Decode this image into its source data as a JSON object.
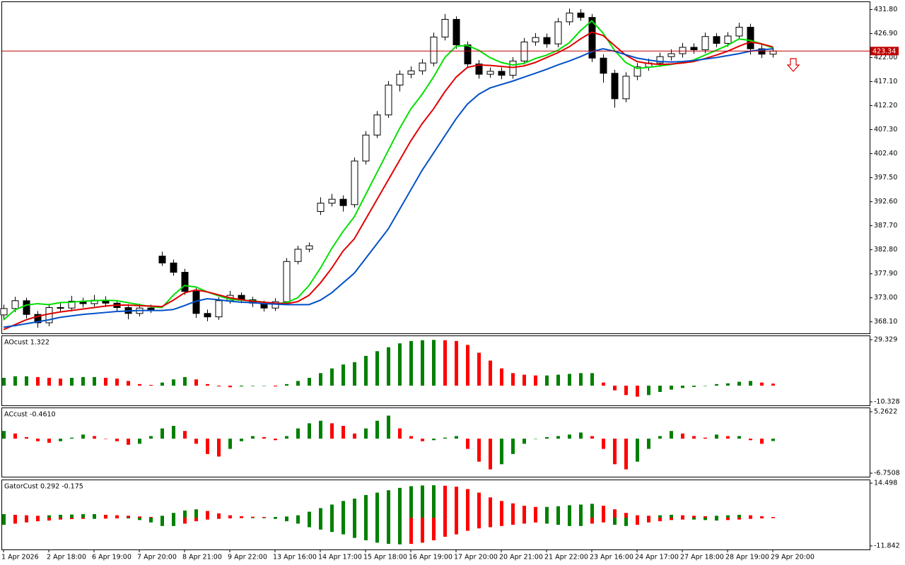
{
  "chart_data": [
    {
      "type": "candlestick",
      "categories": [
        "1 Apr 2026",
        null,
        null,
        null,
        "2 Apr 18:00",
        null,
        null,
        null,
        "6 Apr 19:00",
        null,
        null,
        null,
        "7 Apr 20:00",
        null,
        null,
        null,
        "8 Apr 21:00",
        null,
        null,
        null,
        "9 Apr 22:00",
        null,
        null,
        null,
        "13 Apr 16:00",
        null,
        null,
        null,
        "14 Apr 17:00",
        null,
        null,
        null,
        "15 Apr 18:00",
        null,
        null,
        null,
        "16 Apr 19:00",
        null,
        null,
        null,
        "17 Apr 20:00",
        null,
        null,
        null,
        "20 Apr 21:00",
        null,
        null,
        null,
        "21 Apr 22:00",
        null,
        null,
        null,
        "23 Apr 16:00",
        null,
        null,
        null,
        "24 Apr 17:00",
        null,
        null,
        null,
        "27 Apr 18:00",
        null,
        null,
        null,
        "28 Apr 19:00",
        null,
        null,
        null,
        "29 Apr 20:00"
      ],
      "open": [
        369.5,
        370.8,
        372.4,
        369.6,
        367.9,
        371.0,
        370.9,
        372.3,
        371.8,
        372.5,
        371.9,
        371.0,
        369.8,
        370.9,
        381.5,
        380.1,
        378.2,
        374.3,
        369.8,
        369.1,
        372.4,
        373.5,
        372.6,
        371.9,
        370.9,
        372.2,
        380.4,
        382.9,
        390.6,
        392.3,
        393.1,
        392.0,
        400.9,
        406.2,
        410.3,
        416.4,
        418.6,
        419.3,
        420.9,
        426.2,
        429.8,
        424.6,
        420.7,
        418.6,
        419.2,
        418.4,
        421.3,
        425.2,
        426.1,
        424.8,
        429.3,
        431.1,
        430.2,
        421.9,
        418.8,
        413.6,
        418.2,
        420.1,
        420.9,
        422.2,
        422.8,
        424.1,
        423.6,
        426.3,
        424.9,
        426.4,
        428.2,
        423.8,
        422.7
      ],
      "high": [
        371.6,
        373.2,
        373.0,
        370.3,
        371.8,
        371.9,
        373.4,
        373.0,
        373.6,
        373.3,
        372.5,
        371.7,
        371.8,
        371.6,
        382.4,
        380.8,
        378.9,
        375.0,
        370.6,
        373.1,
        374.4,
        374.1,
        373.2,
        372.4,
        372.9,
        381.1,
        383.6,
        384.3,
        393.5,
        394.2,
        393.9,
        401.6,
        407.0,
        411.1,
        417.2,
        419.4,
        420.2,
        421.7,
        427.1,
        430.9,
        430.4,
        425.3,
        421.5,
        420.0,
        420.0,
        422.1,
        426.0,
        427.0,
        426.9,
        430.1,
        432.0,
        431.9,
        430.9,
        422.7,
        419.5,
        419.0,
        420.9,
        421.8,
        423.0,
        423.7,
        425.0,
        424.9,
        427.1,
        427.0,
        427.2,
        429.1,
        428.9,
        424.6,
        424.1
      ],
      "low": [
        368.4,
        370.1,
        368.8,
        366.9,
        367.2,
        370.0,
        370.2,
        371.0,
        371.2,
        371.1,
        370.1,
        368.6,
        369.2,
        369.9,
        379.5,
        377.5,
        373.6,
        368.9,
        368.2,
        368.5,
        371.8,
        371.9,
        371.1,
        370.2,
        370.3,
        371.6,
        379.8,
        382.3,
        389.9,
        391.6,
        390.6,
        391.4,
        400.2,
        405.6,
        409.7,
        415.1,
        417.8,
        418.5,
        420.2,
        425.5,
        423.8,
        419.9,
        417.7,
        417.9,
        417.6,
        417.7,
        420.6,
        424.4,
        424.0,
        424.1,
        428.6,
        429.5,
        421.1,
        416.9,
        411.8,
        412.9,
        417.4,
        419.3,
        420.1,
        421.4,
        422.0,
        422.8,
        422.9,
        424.1,
        424.2,
        425.7,
        422.6,
        421.9,
        422.0
      ],
      "close": [
        370.8,
        372.4,
        369.6,
        367.9,
        371.0,
        370.9,
        372.3,
        371.8,
        372.5,
        371.9,
        371.0,
        369.8,
        370.9,
        370.6,
        380.1,
        378.2,
        374.3,
        369.8,
        369.1,
        372.4,
        373.5,
        372.6,
        371.9,
        370.9,
        372.2,
        380.4,
        382.9,
        383.6,
        392.3,
        393.1,
        391.8,
        400.9,
        406.2,
        410.3,
        416.4,
        418.6,
        419.3,
        420.9,
        426.2,
        429.8,
        424.6,
        420.7,
        418.6,
        419.2,
        418.4,
        421.3,
        425.2,
        426.1,
        424.8,
        429.3,
        431.1,
        430.2,
        421.9,
        418.8,
        413.6,
        418.2,
        420.1,
        420.9,
        422.2,
        422.8,
        424.1,
        423.6,
        426.3,
        424.9,
        426.4,
        428.2,
        423.8,
        422.7,
        423.34
      ],
      "up_color": "#ffffff",
      "down_color": "#000000",
      "series": [
        {
          "color": "#00e000",
          "values": [
            368.5,
            370.5,
            371.5,
            371.8,
            371.6,
            372.0,
            372.1,
            372.3,
            372.4,
            372.5,
            372.4,
            372.0,
            371.6,
            371.2,
            371.0,
            373.5,
            375.5,
            375.2,
            374.2,
            373.4,
            372.7,
            372.5,
            372.4,
            372.1,
            371.8,
            372.0,
            373.0,
            375.5,
            379.0,
            383.0,
            386.5,
            389.5,
            394.0,
            398.5,
            403.0,
            407.5,
            411.5,
            414.5,
            418.0,
            422.0,
            424.3,
            424.5,
            423.5,
            422.0,
            421.0,
            420.5,
            420.8,
            421.8,
            422.5,
            423.5,
            425.0,
            427.5,
            429.5,
            427.0,
            423.5,
            421.0,
            419.8,
            420.0,
            420.3,
            420.6,
            421.0,
            421.5,
            422.5,
            423.5,
            424.5,
            425.8,
            425.5,
            424.8,
            424.0
          ]
        },
        {
          "color": "#e00000",
          "values": [
            366.5,
            367.5,
            368.5,
            369.2,
            369.7,
            370.1,
            370.4,
            370.7,
            371.0,
            371.3,
            371.5,
            371.5,
            371.4,
            371.3,
            371.2,
            372.5,
            374.0,
            374.6,
            374.2,
            373.6,
            373.0,
            372.6,
            372.3,
            372.1,
            371.9,
            371.8,
            372.2,
            373.5,
            376.0,
            379.0,
            382.5,
            385.0,
            389.0,
            393.0,
            397.0,
            401.0,
            405.0,
            408.5,
            411.5,
            415.0,
            418.0,
            420.0,
            420.5,
            420.4,
            420.2,
            420.0,
            420.3,
            421.0,
            422.0,
            423.0,
            424.2,
            425.8,
            427.2,
            426.5,
            424.5,
            422.5,
            421.2,
            420.8,
            420.6,
            420.7,
            420.9,
            421.2,
            421.8,
            422.5,
            423.3,
            424.3,
            425.2,
            424.8,
            424.2
          ]
        },
        {
          "color": "#0050c8",
          "values": [
            367.0,
            367.3,
            367.7,
            368.1,
            368.5,
            369.0,
            369.3,
            369.6,
            369.8,
            370.0,
            370.2,
            370.3,
            370.4,
            370.4,
            370.4,
            370.6,
            371.4,
            372.3,
            372.8,
            372.6,
            372.3,
            372.1,
            372.0,
            371.8,
            371.7,
            371.6,
            371.6,
            371.6,
            372.5,
            374.0,
            376.0,
            378.0,
            381.0,
            384.0,
            387.0,
            391.0,
            395.0,
            399.0,
            402.5,
            406.0,
            409.5,
            412.5,
            414.5,
            415.8,
            416.5,
            417.2,
            418.0,
            418.8,
            419.6,
            420.5,
            421.3,
            422.2,
            423.2,
            423.8,
            423.3,
            422.6,
            421.9,
            421.5,
            421.2,
            421.1,
            421.2,
            421.4,
            421.7,
            422.0,
            422.4,
            422.8,
            423.3,
            423.6,
            423.8
          ]
        }
      ],
      "current_price": 423.34,
      "current_price_color": "#c00000",
      "ylim": [
        365.74,
        433.32
      ],
      "yticks": [
        {
          "value": 431.8,
          "label": "431.80"
        },
        {
          "value": 426.9,
          "label": "426.90"
        },
        {
          "value": 422.0,
          "label": "422.00"
        },
        {
          "value": 417.1,
          "label": "417.10"
        },
        {
          "value": 412.2,
          "label": "412.20"
        },
        {
          "value": 407.3,
          "label": "407.30"
        },
        {
          "value": 402.4,
          "label": "402.40"
        },
        {
          "value": 397.5,
          "label": "397.50"
        },
        {
          "value": 392.6,
          "label": "392.60"
        },
        {
          "value": 387.7,
          "label": "387.70"
        },
        {
          "value": 382.8,
          "label": "382.80"
        },
        {
          "value": 377.9,
          "label": "377.90"
        },
        {
          "value": 373.0,
          "label": "373.00"
        },
        {
          "value": 368.1,
          "label": "368.10"
        }
      ]
    },
    {
      "type": "bar",
      "title": "AOcust 1.322",
      "up_color": "#008000",
      "down_color": "#ff0000",
      "values": [
        5,
        6,
        6,
        5.5,
        5,
        4.5,
        5,
        5.5,
        5.5,
        5,
        4.5,
        3,
        1,
        0.5,
        2,
        4,
        5.5,
        4,
        1,
        -0.5,
        -1,
        -0.5,
        -0.3,
        -0.2,
        -0.5,
        1,
        3,
        5,
        8,
        11,
        13.5,
        15,
        19,
        22,
        24.5,
        27,
        28.5,
        29,
        29.2,
        29,
        28.5,
        26,
        21,
        16,
        11,
        8,
        7,
        6.5,
        6.5,
        7,
        7.5,
        8,
        8,
        2,
        -3,
        -6,
        -7,
        -6,
        -4,
        -2.5,
        -1.5,
        -0.8,
        0,
        1,
        1.5,
        2.5,
        3,
        2,
        1.322
      ],
      "ylim": [
        -12.58,
        31.58
      ],
      "yticks": [
        29.329,
        -10.328
      ]
    },
    {
      "type": "bar",
      "title": "ACcust -0.4610",
      "up_color": "#008000",
      "down_color": "#ff0000",
      "values": [
        1.5,
        1,
        0.3,
        -0.5,
        -0.8,
        -0.5,
        0.2,
        0.8,
        0.5,
        0,
        -0.5,
        -1.2,
        -1,
        0.5,
        2,
        2.5,
        1.5,
        -1,
        -3,
        -3.5,
        -2,
        -0.5,
        0.5,
        0.3,
        -0.3,
        0.5,
        2,
        3,
        3.5,
        3,
        2.5,
        1,
        2,
        3.5,
        4.5,
        2,
        0.5,
        -0.5,
        -0.3,
        0.2,
        0.5,
        -2,
        -4.5,
        -6,
        -5,
        -3,
        -1,
        0,
        0.3,
        0.5,
        0.8,
        1.2,
        0.5,
        -2,
        -5,
        -6,
        -4.5,
        -2,
        0.5,
        1.5,
        1,
        0.5,
        0.2,
        0.8,
        0.5,
        0.5,
        -0.3,
        -1,
        -0.461
      ],
      "ylim": [
        -7.44,
        5.95
      ],
      "yticks": [
        5.2622,
        -6.7508
      ]
    },
    {
      "type": "bar",
      "title": "GatorCust 0.292 -0.175",
      "up_color": "#008000",
      "down_color": "#ff0000",
      "series": [
        {
          "values": [
            1.5,
            1.2,
            1.0,
            0.8,
            1.0,
            1.2,
            1.3,
            1.5,
            1.5,
            1.2,
            1.0,
            0.8,
            0.5,
            0.3,
            0.8,
            2.0,
            3.0,
            3.5,
            2.8,
            1.8,
            1.0,
            0.6,
            0.4,
            0.3,
            0.3,
            0.5,
            1.0,
            2.5,
            4.0,
            5.5,
            7.0,
            8.0,
            9.5,
            10.5,
            11.5,
            12.5,
            13.2,
            13.5,
            13.6,
            13.4,
            13.0,
            12.0,
            10.5,
            8.5,
            7.0,
            6.0,
            5.0,
            4.5,
            4.5,
            4.8,
            5.2,
            5.5,
            5.8,
            5.0,
            3.5,
            2.0,
            1.0,
            0.8,
            1.0,
            1.2,
            1.0,
            0.8,
            0.6,
            0.8,
            1.0,
            1.2,
            1.0,
            0.6,
            0.292
          ]
        },
        {
          "values": [
            -3,
            -2.5,
            -2,
            -1.5,
            -1.2,
            -0.8,
            -0.6,
            -0.5,
            -0.5,
            -0.4,
            -0.3,
            -0.3,
            -1,
            -2,
            -3.5,
            -3.5,
            -2.5,
            -1.5,
            -0.8,
            -0.5,
            -0.3,
            -0.2,
            -0.2,
            -0.2,
            -0.5,
            -1.5,
            -2.5,
            -4,
            -5,
            -6,
            -7,
            -8.5,
            -9.5,
            -10.5,
            -11,
            -11.2,
            -11,
            -10.5,
            -9.5,
            -8,
            -7,
            -5.5,
            -4.5,
            -4,
            -3.5,
            -3,
            -2.5,
            -2,
            -2.5,
            -3,
            -3.5,
            -3.5,
            -2.5,
            -2,
            -3,
            -3.5,
            -3,
            -2,
            -1.5,
            -1,
            -0.8,
            -0.8,
            -1,
            -1.2,
            -1,
            -0.8,
            -0.5,
            -0.3,
            -0.175
          ]
        }
      ],
      "ylim": [
        -13.34,
        15.7
      ],
      "yticks": [
        14.498,
        -11.842
      ]
    }
  ]
}
